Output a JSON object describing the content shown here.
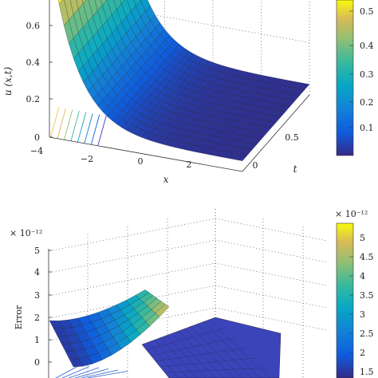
{
  "chart_data": [
    {
      "type": "surface",
      "xlabel": "x",
      "ylabel": "t",
      "zlabel": "u (x,t)",
      "x_ticks": [
        "−4",
        "−2",
        "0",
        "2"
      ],
      "t_ticks": [
        "0",
        "0.5"
      ],
      "z_ticks": [
        "0",
        "0.2",
        "0.4",
        "0.6"
      ],
      "colorbar_ticks": [
        "0.1",
        "0.2",
        "0.3",
        "0.4",
        "0.5"
      ],
      "colorbar_range": [
        0.03,
        0.58
      ],
      "xlim": [
        -4,
        4
      ],
      "tlim": [
        0,
        1
      ],
      "zlim": [
        0,
        0.7
      ],
      "surface_model": "u(x,t) ≈ 0.68·e^(−0.9(x+4)) + 0.04",
      "colormap": "parula",
      "grid": true,
      "axes": "box"
    },
    {
      "type": "surface",
      "xlabel": "",
      "ylabel": "",
      "zlabel": "Error",
      "z_exponent": "× 10⁻¹²",
      "z_ticks": [
        "0",
        "1",
        "2",
        "3",
        "4",
        "5"
      ],
      "colorbar_exponent": "× 10⁻¹²",
      "colorbar_ticks": [
        "1.5",
        "2",
        "2.5",
        "3",
        "3.5",
        "4",
        "4.5",
        "5"
      ],
      "colorbar_range": [
        1.0,
        5.4
      ],
      "zlim": [
        0,
        5
      ],
      "colormap": "parula",
      "grid": true
    }
  ]
}
